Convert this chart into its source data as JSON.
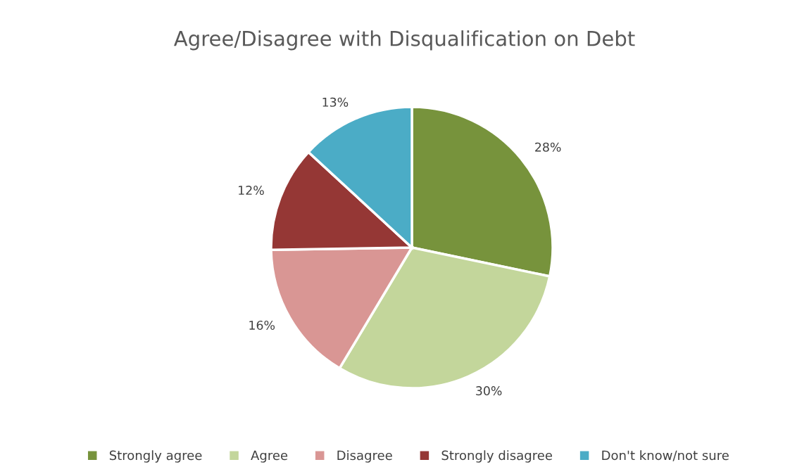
{
  "chart_data": {
    "type": "pie",
    "title": "Agree/Disagree with Disqualification on Debt",
    "categories": [
      "Strongly agree",
      "Agree",
      "Disagree",
      "Strongly disagree",
      "Don't know/not sure"
    ],
    "values": [
      28,
      30,
      16,
      12,
      13
    ],
    "value_labels": [
      "28%",
      "30%",
      "16%",
      "12%",
      "13%"
    ],
    "colors": [
      "#77933c",
      "#c3d69b",
      "#d99694",
      "#953735",
      "#4bacc6"
    ],
    "legend": "bottom"
  }
}
